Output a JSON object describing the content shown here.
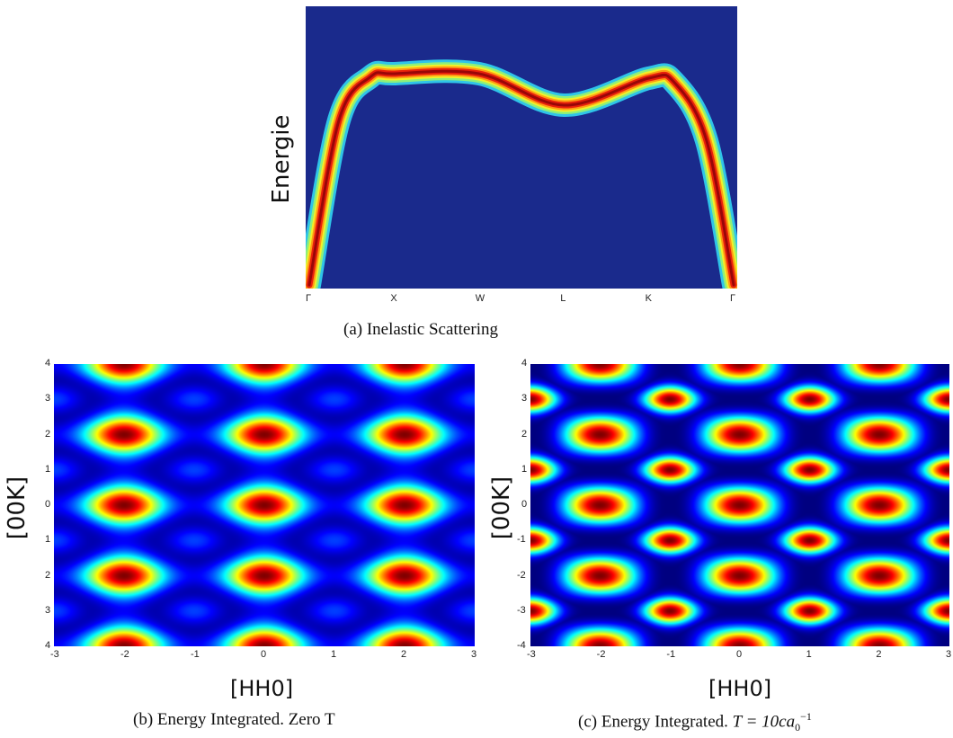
{
  "chart_data": [
    {
      "type": "heatmap",
      "caption": "(a) Inelastic Scattering",
      "ylabel": "Energie",
      "xlabel": "",
      "categories": [
        "Γ",
        "X",
        "W",
        "L",
        "K",
        "Γ"
      ],
      "background_color": "#1a2a8c",
      "band_relative_energy": [
        0.0,
        0.94,
        0.94,
        0.8,
        0.92,
        0.0
      ]
    },
    {
      "type": "heatmap",
      "caption": "(b) Energy Integrated. Zero T",
      "xlabel": "[HH0]",
      "ylabel": "[00K]",
      "xlim": [
        -3,
        3
      ],
      "ylim": [
        -4,
        4
      ],
      "xticks": [
        "-3",
        "-2",
        "-1",
        "0",
        "1",
        "2",
        "3"
      ],
      "yticks": [
        "4",
        "3",
        "2",
        "1",
        "0",
        "1",
        "2",
        "3",
        "4"
      ]
    },
    {
      "type": "heatmap",
      "caption": "(c) Energy Integrated. T = 10ca0−1",
      "caption_prefix": "(c) Energy Integrated. ",
      "caption_math": "T = 10ca",
      "caption_sub": "0",
      "caption_sup": "−1",
      "xlabel": "[HH0]",
      "ylabel": "[00K]",
      "xlim": [
        -3,
        3
      ],
      "ylim": [
        -4,
        4
      ],
      "xticks": [
        "-3",
        "-2",
        "-1",
        "0",
        "1",
        "2",
        "3"
      ],
      "yticks": [
        "4",
        "3",
        "2",
        "1",
        "0",
        "-1",
        "-2",
        "-3",
        "-4"
      ]
    }
  ]
}
